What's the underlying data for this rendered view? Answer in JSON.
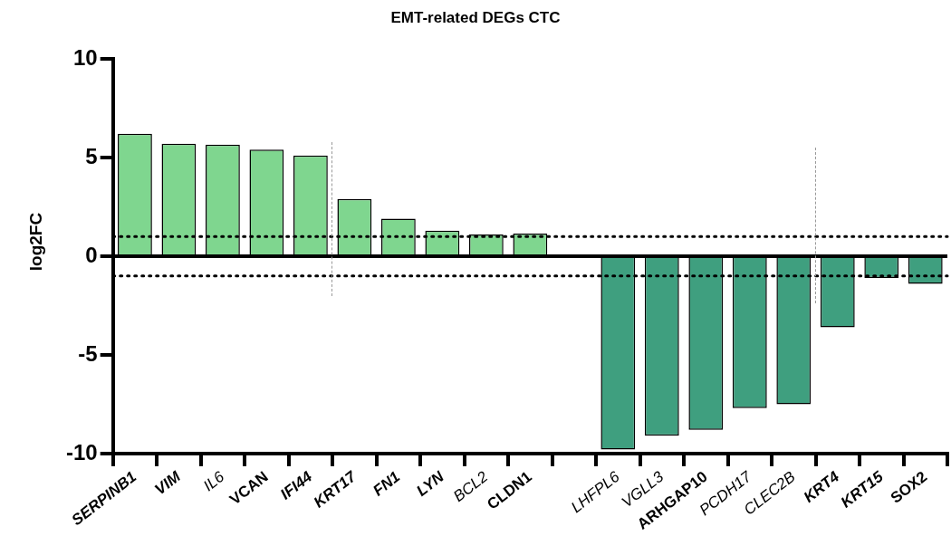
{
  "chart_data": {
    "type": "bar",
    "title": "EMT-related DEGs CTC",
    "ylabel": "log2FC",
    "categories": [
      "SERPINB1",
      "VIM",
      "IL6",
      "VCAN",
      "IFI44",
      "KRT17",
      "FN1",
      "LYN",
      "BCL2",
      "CLDN1",
      null,
      "LHFPL6",
      "VGLL3",
      "ARHGAP10",
      "PCDH17",
      "CLEC2B",
      "KRT4",
      "KRT15",
      "SOX2"
    ],
    "values": [
      6.2,
      5.7,
      5.65,
      5.4,
      5.1,
      2.9,
      1.9,
      1.3,
      1.1,
      1.15,
      null,
      -9.8,
      -9.1,
      -8.8,
      -7.7,
      -7.5,
      -3.6,
      -1.1,
      -1.4
    ],
    "colors": [
      "#7fd68f",
      "#7fd68f",
      "#7fd68f",
      "#7fd68f",
      "#7fd68f",
      "#7fd68f",
      "#7fd68f",
      "#7fd68f",
      "#7fd68f",
      "#7fd68f",
      "#7fd68f",
      "#3f9f7f",
      "#3f9f7f",
      "#3f9f7f",
      "#3f9f7f",
      "#3f9f7f",
      "#3f9f7f",
      "#3f9f7f",
      "#3f9f7f"
    ],
    "ylim": [
      -10,
      10
    ],
    "yticks": [
      -10,
      -5,
      0,
      5,
      10
    ],
    "ref_lines": [
      {
        "axis": "y",
        "value": 0,
        "color": "#000000",
        "line_style": "solid"
      },
      {
        "axis": "y",
        "value": 1,
        "color": "#000000",
        "line_style": "dotted"
      },
      {
        "axis": "y",
        "value": -1,
        "color": "#000000",
        "line_style": "dotted"
      }
    ]
  }
}
